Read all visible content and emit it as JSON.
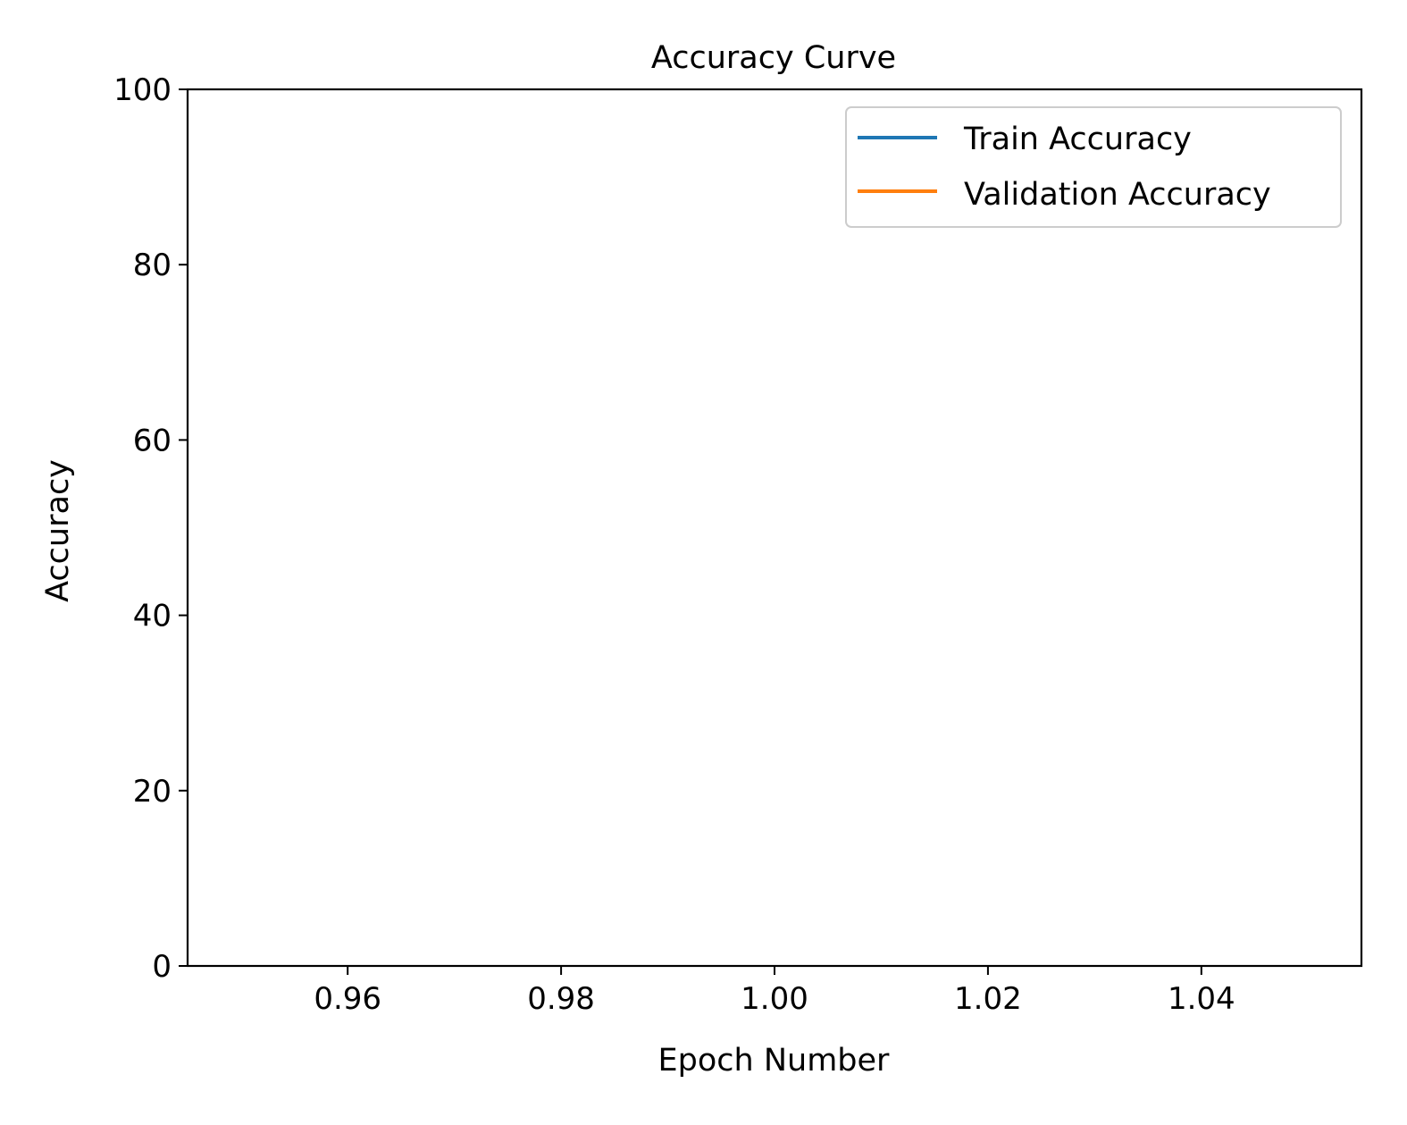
{
  "chart_data": {
    "type": "line",
    "title": "Accuracy Curve",
    "xlabel": "Epoch Number",
    "ylabel": "Accuracy",
    "xlim": [
      0.945,
      1.055
    ],
    "ylim": [
      0,
      100
    ],
    "x_ticks": [
      0.96,
      0.98,
      1.0,
      1.02,
      1.04
    ],
    "x_tick_labels": [
      "0.96",
      "0.98",
      "1.00",
      "1.02",
      "1.04"
    ],
    "y_ticks": [
      0,
      20,
      40,
      60,
      80,
      100
    ],
    "y_tick_labels": [
      "0",
      "20",
      "40",
      "60",
      "80",
      "100"
    ],
    "grid": false,
    "legend_position": "top-right",
    "x": [
      1
    ],
    "series": [
      {
        "name": "Train Accuracy",
        "color": "#1f77b4",
        "values": [
          null
        ]
      },
      {
        "name": "Validation Accuracy",
        "color": "#ff7f0e",
        "values": [
          null
        ]
      }
    ]
  }
}
